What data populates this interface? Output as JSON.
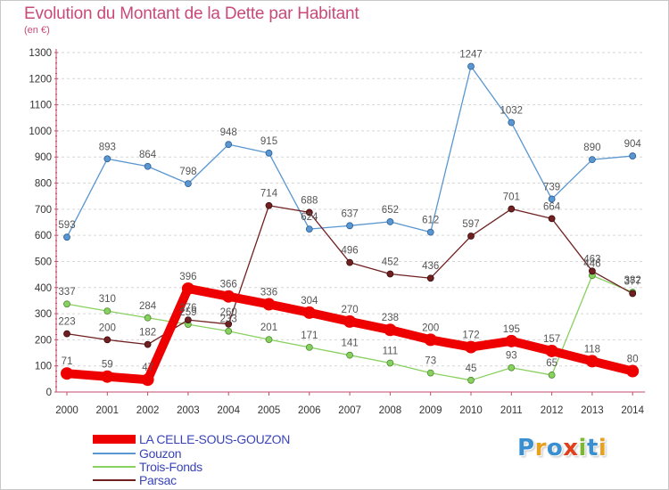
{
  "title": "Evolution du Montant de la Dette par Habitant",
  "subtitle": "(en €)",
  "brand_logo": "Proxiti",
  "chart_data": {
    "type": "line",
    "title": "Evolution du Montant de la Dette par Habitant",
    "subtitle": "(en €)",
    "xlabel": "",
    "ylabel": "",
    "x": [
      "2000",
      "2001",
      "2002",
      "2003",
      "2004",
      "2005",
      "2006",
      "2007",
      "2008",
      "2009",
      "2010",
      "2011",
      "2012",
      "2013",
      "2014"
    ],
    "ylim": [
      0,
      1300
    ],
    "yticks": [
      0,
      100,
      200,
      300,
      400,
      500,
      600,
      700,
      800,
      900,
      1000,
      1100,
      1200,
      1300
    ],
    "grid": "horizontal dashed",
    "legend_placement": "bottom-left",
    "series": [
      {
        "name": "LA CELLE-SOUS-GOUZON",
        "color": "#ee0000",
        "values": [
          71,
          59,
          47,
          396,
          366,
          336,
          304,
          270,
          238,
          200,
          172,
          195,
          157,
          118,
          80
        ]
      },
      {
        "name": "Gouzon",
        "color": "#5a96d0",
        "values": [
          593,
          893,
          864,
          798,
          948,
          915,
          624,
          637,
          652,
          612,
          1247,
          1032,
          739,
          890,
          904
        ]
      },
      {
        "name": "Trois-Fonds",
        "color": "#88d060",
        "values": [
          337,
          310,
          284,
          259,
          233,
          201,
          171,
          141,
          111,
          73,
          45,
          93,
          65,
          446,
          382
        ]
      },
      {
        "name": "Parsac",
        "color": "#702020",
        "values": [
          223,
          200,
          182,
          276,
          260,
          714,
          688,
          496,
          452,
          436,
          597,
          701,
          664,
          463,
          377
        ]
      }
    ]
  }
}
